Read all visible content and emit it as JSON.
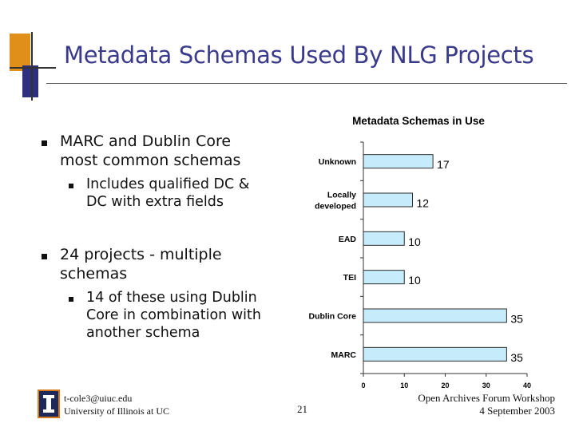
{
  "slide": {
    "title": "Metadata Schemas Used By NLG Projects",
    "bullets": [
      {
        "text_line1": "MARC and Dublin Core",
        "text_line2": "most common schemas",
        "sub": {
          "line1": "Includes qualified DC &",
          "line2": "DC with extra fields"
        }
      },
      {
        "text_line1": "24 projects - multiple",
        "text_line2": "schemas",
        "sub": {
          "line1": "14 of these using Dublin",
          "line2": "Core in combination with",
          "line3": "another schema"
        }
      }
    ],
    "footer": {
      "email": "t-cole3@uiuc.edu",
      "institution": "University of Illinois at UC",
      "page_number": "21",
      "event": "Open Archives Forum Workshop",
      "date": "4 September 2003"
    },
    "colors": {
      "title": "#3a3a8c",
      "accent_orange": "#e0901a",
      "accent_navy": "#2f2f7f",
      "bar_fill": "#c6ecfc"
    }
  },
  "chart_data": {
    "type": "bar",
    "orientation": "horizontal",
    "title": "Metadata Schemas in Use",
    "categories": [
      "Unknown",
      "Locally developed",
      "EAD",
      "TEI",
      "Dublin Core",
      "MARC"
    ],
    "category_lines": [
      [
        "Unknown"
      ],
      [
        "Locally",
        "developed"
      ],
      [
        "EAD"
      ],
      [
        "TEI"
      ],
      [
        "Dublin Core"
      ],
      [
        "MARC"
      ]
    ],
    "values": [
      17,
      12,
      10,
      10,
      35,
      35
    ],
    "xlim": [
      0,
      40
    ],
    "xticks": [
      0,
      10,
      20,
      30,
      40
    ],
    "grid": false,
    "legend": "none"
  }
}
